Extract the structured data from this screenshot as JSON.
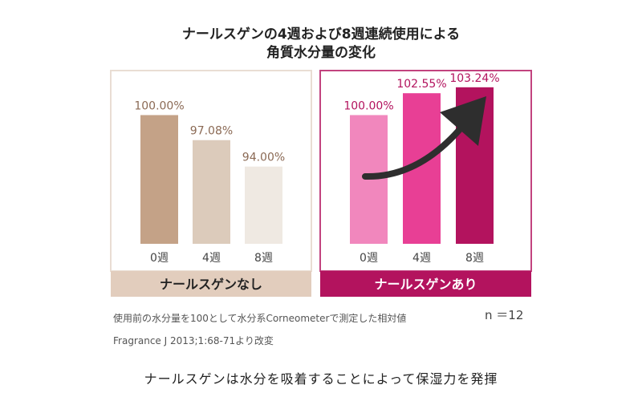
{
  "title": {
    "line1": "ナールスゲンの4週および8週連続使用による",
    "line2": "角質水分量の変化"
  },
  "chart_data": [
    {
      "type": "bar",
      "panel_title": "ナールスゲンなし",
      "categories": [
        "0週",
        "4週",
        "8週"
      ],
      "values": [
        100.0,
        97.08,
        94.0
      ],
      "value_labels": [
        "100.00%",
        "97.08%",
        "94.00%"
      ],
      "bar_colors": [
        "#c4a287",
        "#dccbbb",
        "#efe9e2"
      ],
      "label_color": "#8b6a55",
      "header_bg": "#e2cdbd",
      "header_text_color": "#222222",
      "border_color": "#e9ddd3",
      "ylim": [
        85,
        105
      ]
    },
    {
      "type": "bar",
      "panel_title": "ナールスゲンあり",
      "categories": [
        "0週",
        "4週",
        "8週"
      ],
      "values": [
        100.0,
        102.55,
        103.24
      ],
      "value_labels": [
        "100.00%",
        "102.55%",
        "103.24%"
      ],
      "bar_colors": [
        "#f187bd",
        "#e83f95",
        "#b3135e"
      ],
      "label_color": "#b3135e",
      "header_bg": "#b3135e",
      "header_text_color": "#ffffff",
      "border_color": "#c2437f",
      "ylim": [
        85,
        105
      ],
      "annotation": "arrow-up-right"
    }
  ],
  "notes": {
    "method": "使用前の水分量を100として水分系Corneometerで測定した相対値",
    "sample_size": "n ＝12",
    "source": "Fragrance J 2013;1:68-71より改変"
  },
  "caption": "ナールスゲンは水分を吸着することによって保湿力を発揮"
}
